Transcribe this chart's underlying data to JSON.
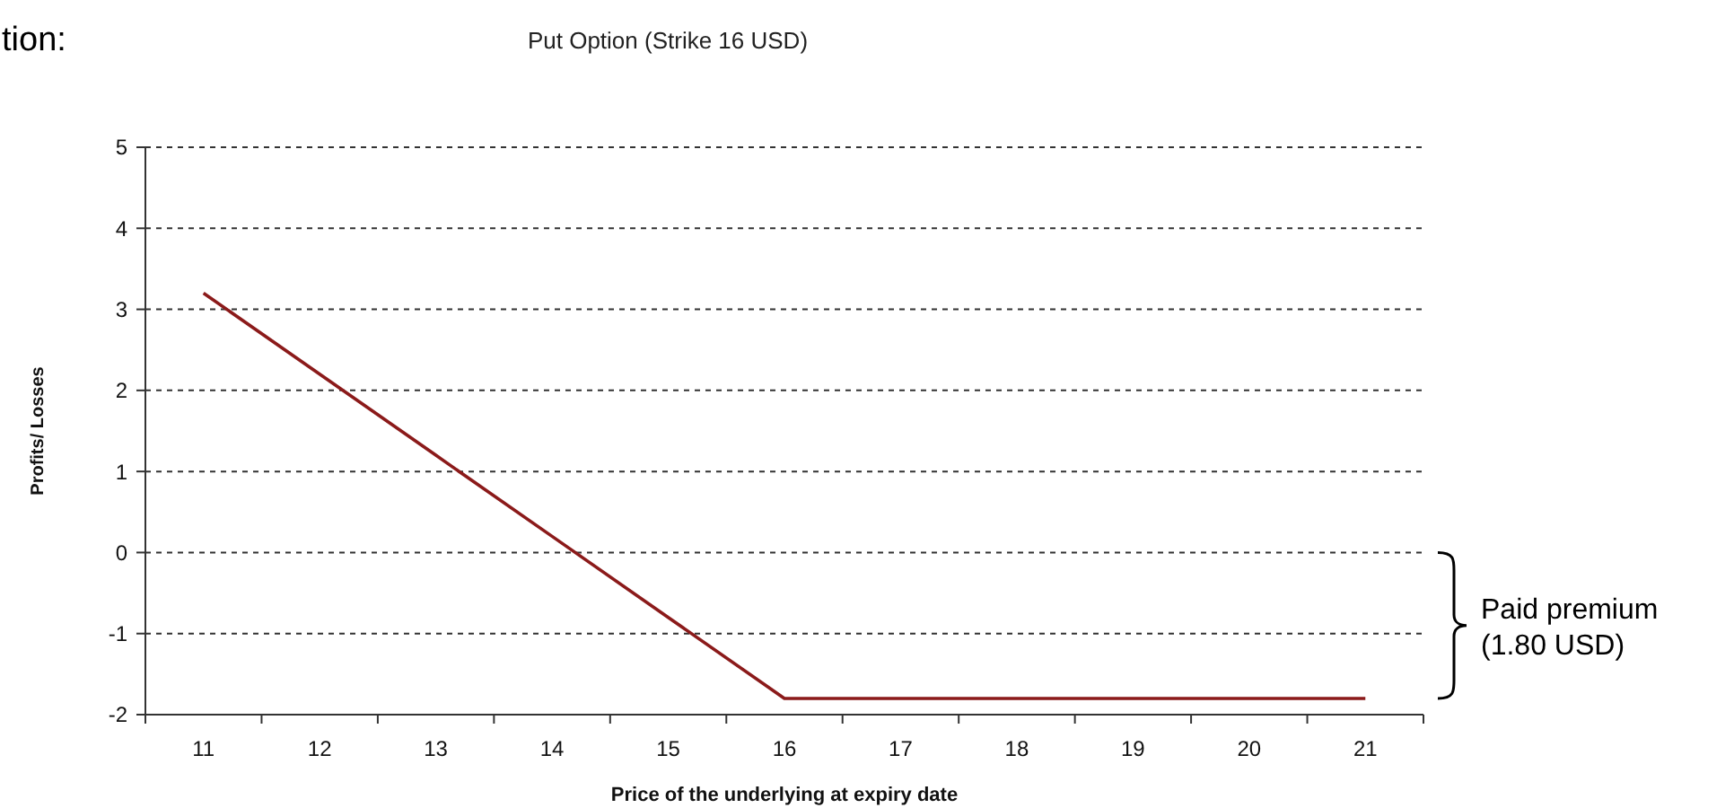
{
  "chart_data": {
    "type": "line",
    "title": "Put Option (Strike 16 USD)",
    "xlabel": "Price of the underlying at expiry date",
    "ylabel": "Profits/ Losses",
    "categories": [
      "11",
      "12",
      "13",
      "14",
      "15",
      "16",
      "17",
      "18",
      "19",
      "20",
      "21"
    ],
    "series": [
      {
        "color": "#8b1a1a",
        "values": [
          3.2,
          2.2,
          1.2,
          0.2,
          -0.8,
          -1.8,
          -1.8,
          -1.8,
          -1.8,
          -1.8,
          -1.8
        ]
      }
    ],
    "ylim": [
      -2,
      5
    ],
    "yticks": [
      -2,
      -1,
      0,
      1,
      2,
      3,
      4,
      5
    ],
    "grid": "y",
    "marker": "none",
    "line_style": "solid",
    "annotations": [
      "tion:",
      "Paid premium (1.80 USD)"
    ]
  }
}
